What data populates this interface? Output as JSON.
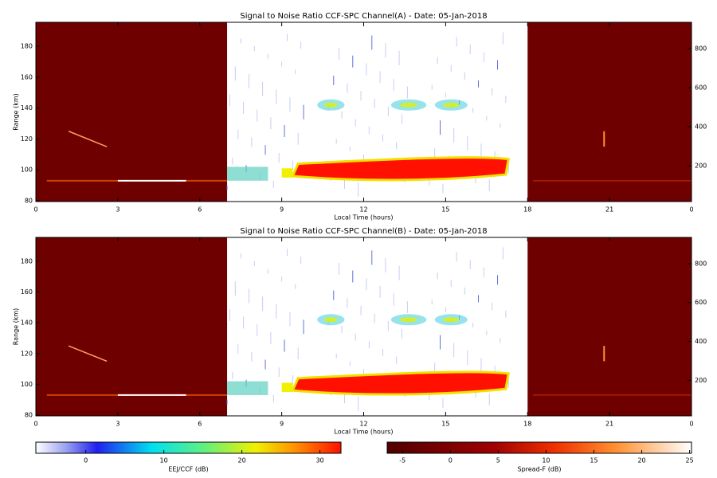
{
  "chart_data": [
    {
      "type": "heatmap",
      "title": "Signal to Noise Ratio CCF-SPC Channel(A) - Date: 05-Jan-2018",
      "x_label": "Local Time (hours)",
      "y_label": "Range (km)",
      "xlim": [
        0,
        24
      ],
      "xticks": [
        0,
        3,
        6,
        9,
        12,
        15,
        18,
        21,
        {
          "value": 24,
          "label": "0"
        }
      ],
      "ylim": [
        79.5,
        195.5
      ],
      "yticks": [
        80,
        100,
        120,
        140,
        160,
        180
      ],
      "y2lim": [
        17,
        935
      ],
      "y2ticks": [
        200,
        400,
        600,
        800
      ]
    },
    {
      "type": "heatmap",
      "title": "Signal to Noise Ratio CCF-SPC Channel(B) - Date: 05-Jan-2018",
      "x_label": "Local Time (hours)",
      "y_label": "Range (km)",
      "xlim": [
        0,
        24
      ],
      "xticks": [
        0,
        3,
        6,
        9,
        12,
        15,
        18,
        21,
        {
          "value": 24,
          "label": "0"
        }
      ],
      "ylim": [
        79.5,
        195.5
      ],
      "yticks": [
        80,
        100,
        120,
        140,
        160,
        180
      ],
      "y2lim": [
        17,
        935
      ],
      "y2ticks": [
        200,
        400,
        600,
        800
      ]
    }
  ],
  "colorbars": [
    {
      "label": "EEJ/CCF (dB)",
      "lim": [
        -6.4,
        32.7
      ],
      "ticks": [
        0,
        10,
        20,
        30
      ]
    },
    {
      "label": "Spread-F (dB)",
      "lim": [
        -6.6,
        25.2
      ],
      "ticks": [
        -5,
        0,
        5,
        10,
        15,
        20,
        25
      ]
    }
  ]
}
